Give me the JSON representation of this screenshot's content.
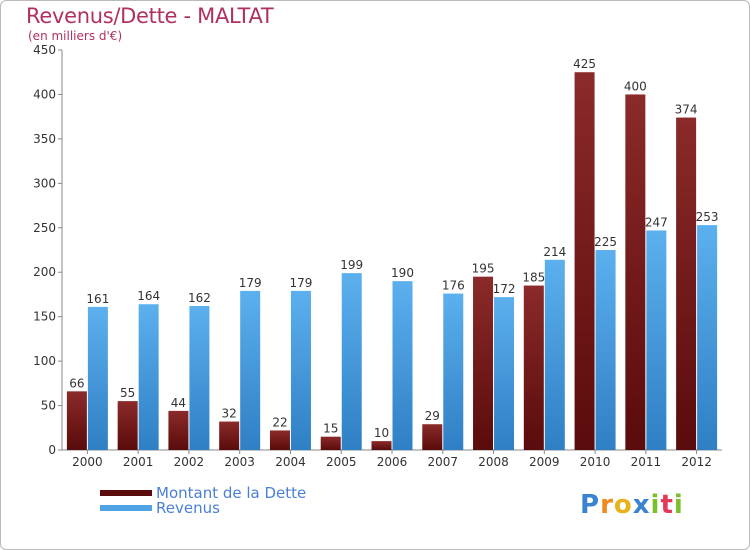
{
  "header": {
    "title": "Revenus/Dette - MALTAT",
    "subtitle": "(en milliers d'€)"
  },
  "chart_data": {
    "type": "bar",
    "categories": [
      "2000",
      "2001",
      "2002",
      "2003",
      "2004",
      "2005",
      "2006",
      "2007",
      "2008",
      "2009",
      "2010",
      "2011",
      "2012"
    ],
    "series": [
      {
        "name": "Montant de la Dette",
        "values": [
          66,
          55,
          44,
          32,
          22,
          15,
          10,
          29,
          195,
          185,
          425,
          400,
          374
        ],
        "color": "#7a1a1a"
      },
      {
        "name": "Revenus",
        "values": [
          161,
          164,
          162,
          179,
          179,
          199,
          190,
          176,
          172,
          214,
          225,
          247,
          253
        ],
        "color": "#4fa3e3"
      }
    ],
    "title": "Revenus/Dette - MALTAT",
    "ylabel": "(en milliers d'€)",
    "xlabel": "",
    "ylim": [
      0,
      450
    ],
    "yticks": [
      0,
      50,
      100,
      150,
      200,
      250,
      300,
      350,
      400,
      450
    ],
    "grid": false,
    "legend_position": "bottom-left"
  },
  "legend": {
    "items": [
      {
        "label": "Montant de la Dette",
        "color": "#5a0b0b"
      },
      {
        "label": "Revenus",
        "color": "#4fa3e3"
      }
    ]
  },
  "logo": {
    "text": "Proxiti",
    "letters": [
      "P",
      "r",
      "o",
      "x",
      "i",
      "t",
      "i"
    ],
    "colors": [
      "#3a83d0",
      "#f08a1c",
      "#e8b21a",
      "#3a83d0",
      "#7bbf2e",
      "#e23b5a",
      "#7bbf2e"
    ]
  }
}
